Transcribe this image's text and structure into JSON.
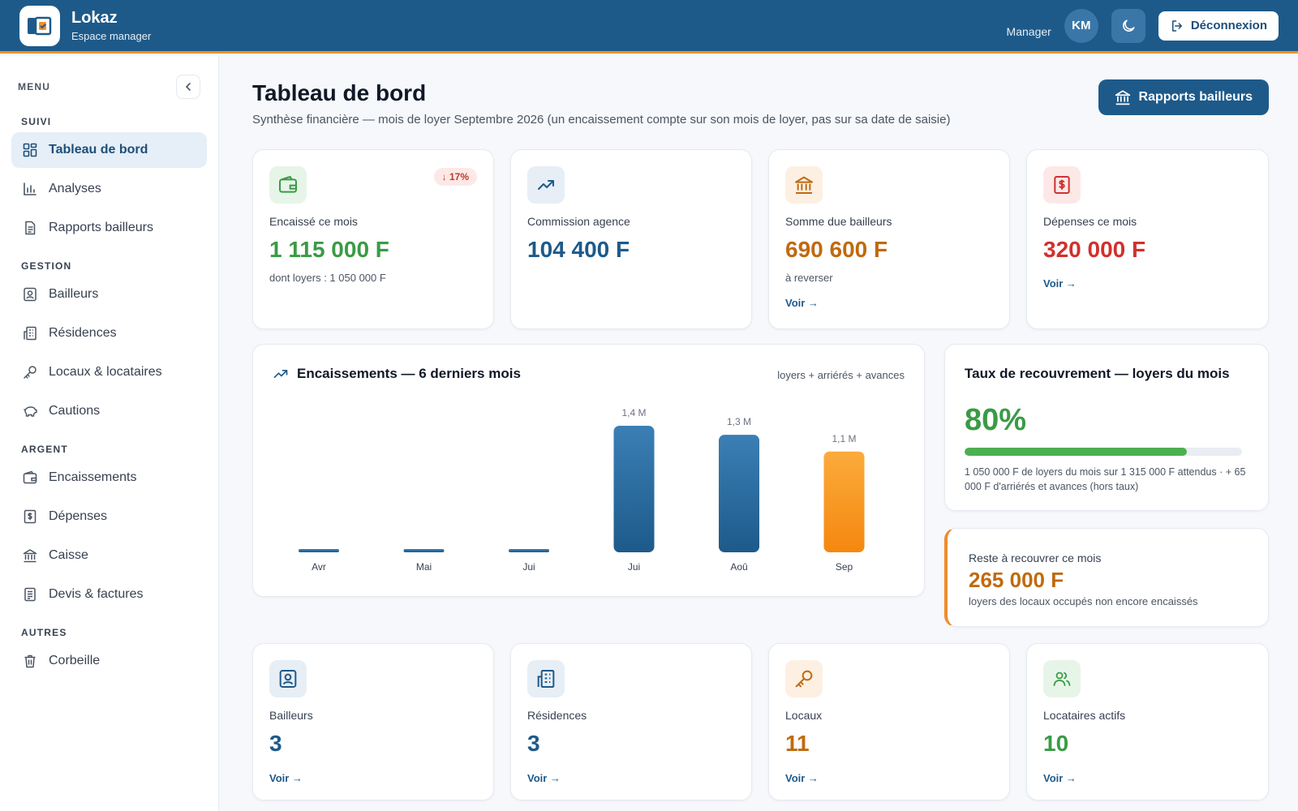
{
  "app": {
    "name": "Lokaz",
    "subtitle": "Espace manager",
    "role": "Manager",
    "avatar_initials": "KM",
    "logout_label": "Déconnexion"
  },
  "colors": {
    "primary": "#1d5a8a",
    "accent": "#f0902a",
    "green": "#3a9b45",
    "orange": "#c06a10",
    "red": "#d0312d"
  },
  "sidebar": {
    "menu_title": "MENU",
    "sections": [
      {
        "title": "SUIVI",
        "items": [
          {
            "label": "Tableau de bord",
            "icon": "dashboard-icon",
            "active": true
          },
          {
            "label": "Analyses",
            "icon": "bar-chart-icon"
          },
          {
            "label": "Rapports bailleurs",
            "icon": "document-icon"
          }
        ]
      },
      {
        "title": "GESTION",
        "items": [
          {
            "label": "Bailleurs",
            "icon": "id-badge-icon"
          },
          {
            "label": "Résidences",
            "icon": "building-icon"
          },
          {
            "label": "Locaux & locataires",
            "icon": "key-icon"
          },
          {
            "label": "Cautions",
            "icon": "piggy-bank-icon"
          }
        ]
      },
      {
        "title": "ARGENT",
        "items": [
          {
            "label": "Encaissements",
            "icon": "wallet-icon"
          },
          {
            "label": "Dépenses",
            "icon": "receipt-icon"
          },
          {
            "label": "Caisse",
            "icon": "bank-icon"
          },
          {
            "label": "Devis & factures",
            "icon": "invoice-icon"
          }
        ]
      },
      {
        "title": "AUTRES",
        "items": [
          {
            "label": "Corbeille",
            "icon": "trash-icon"
          }
        ]
      }
    ]
  },
  "header": {
    "title": "Tableau de bord",
    "subtitle": "Synthèse financière — mois de loyer Septembre 2026 (un encaissement compte sur son mois de loyer, pas sur sa date de saisie)",
    "rapports_button": "Rapports bailleurs"
  },
  "kpis": [
    {
      "label": "Encaissé ce mois",
      "value": "1 115 000 F",
      "note": "dont loyers : 1 050 000 F",
      "badge": "↓ 17%",
      "icon": "wallet-icon"
    },
    {
      "label": "Commission agence",
      "value": "104 400 F",
      "icon": "trend-up-icon"
    },
    {
      "label": "Somme due bailleurs",
      "value": "690 600 F",
      "note": "à reverser",
      "link": "Voir →",
      "icon": "bank-icon"
    },
    {
      "label": "Dépenses ce mois",
      "value": "320 000 F",
      "link": "Voir →",
      "icon": "receipt-icon"
    }
  ],
  "chart_panel": {
    "title": "Encaissements — 6 derniers mois",
    "legend": "loyers + arriérés + avances"
  },
  "chart_data": {
    "type": "bar",
    "categories": [
      "Avr",
      "Mai",
      "Jui",
      "Jui",
      "Aoû",
      "Sep"
    ],
    "values": [
      0,
      0,
      0,
      1.4,
      1.3,
      1.115
    ],
    "data_labels": [
      "",
      "",
      "",
      "1,4 M",
      "1,3 M",
      "1,1 M"
    ],
    "highlight_index": 5,
    "colors": {
      "bar": "#1d5a8a",
      "highlight": "#f5870f"
    },
    "ylim": [
      0,
      1.4
    ],
    "grid": false
  },
  "recovery": {
    "title": "Taux de recouvrement — loyers du mois",
    "rate": "80%",
    "rate_fraction": 0.8,
    "note": "1 050 000 F de loyers du mois sur 1 315 000 F attendus · + 65 000 F d'arriérés et avances (hors taux)"
  },
  "reste": {
    "label": "Reste à recouvrer ce mois",
    "value": "265 000 F",
    "note": "loyers des locaux occupés non encore encaissés"
  },
  "counts": [
    {
      "label": "Bailleurs",
      "value": "3",
      "link": "Voir →",
      "icon": "id-badge-icon"
    },
    {
      "label": "Résidences",
      "value": "3",
      "link": "Voir →",
      "icon": "building-icon"
    },
    {
      "label": "Locaux",
      "value": "11",
      "link": "Voir →",
      "icon": "key-icon"
    },
    {
      "label": "Locataires actifs",
      "value": "10",
      "link": "Voir →",
      "icon": "users-icon"
    }
  ]
}
